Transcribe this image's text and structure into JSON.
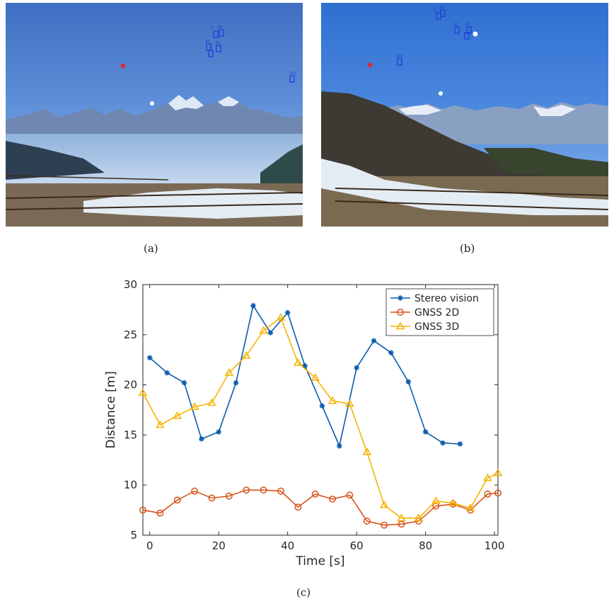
{
  "captions": {
    "a": "(a)",
    "b": "(b)",
    "c": "(c)"
  },
  "photo_a_labels": [
    "0",
    "80",
    "20",
    "60",
    "100"
  ],
  "photo_b_labels": [
    "0",
    "80",
    "20",
    "60",
    "100"
  ],
  "colors": {
    "stereo": "#0a5cad",
    "gnss2d": "#d95319",
    "gnss3d": "#f5b400",
    "box": "#1f3fd6"
  },
  "chart_data": {
    "type": "line",
    "xlabel": "Time [s]",
    "ylabel": "Distance [m]",
    "xlim": [
      -2,
      101
    ],
    "ylim": [
      5,
      30
    ],
    "xticks": [
      0,
      20,
      40,
      60,
      80,
      100
    ],
    "yticks": [
      5,
      10,
      15,
      20,
      25,
      30
    ],
    "grid": false,
    "legend": "top-right",
    "series": [
      {
        "name": "Stereo vision",
        "marker": "star",
        "x": [
          0,
          5,
          10,
          15,
          20,
          25,
          30,
          35,
          40,
          45,
          50,
          55,
          60,
          65,
          70,
          75,
          80,
          85,
          90
        ],
        "y": [
          22.7,
          21.2,
          20.2,
          14.6,
          15.3,
          20.2,
          27.9,
          25.2,
          27.2,
          21.9,
          17.9,
          13.9,
          21.7,
          24.4,
          23.2,
          20.3,
          15.3,
          14.2,
          14.1
        ]
      },
      {
        "name": "GNSS 2D",
        "marker": "circle",
        "x": [
          -2,
          3,
          8,
          13,
          18,
          23,
          28,
          33,
          38,
          43,
          48,
          53,
          58,
          63,
          68,
          73,
          78,
          83,
          88,
          93,
          98,
          101
        ],
        "y": [
          7.5,
          7.2,
          8.5,
          9.4,
          8.7,
          8.9,
          9.5,
          9.5,
          9.4,
          7.8,
          9.1,
          8.6,
          9.0,
          6.4,
          6.0,
          6.1,
          6.4,
          7.9,
          8.1,
          7.5,
          9.1,
          9.2
        ]
      },
      {
        "name": "GNSS 3D",
        "marker": "triangle",
        "x": [
          -2,
          3,
          8,
          13,
          18,
          23,
          28,
          33,
          38,
          43,
          48,
          53,
          58,
          63,
          68,
          73,
          78,
          83,
          88,
          93,
          98,
          101
        ],
        "y": [
          19.2,
          16.0,
          16.9,
          17.8,
          18.2,
          21.2,
          22.9,
          25.4,
          26.7,
          22.2,
          20.7,
          18.4,
          18.1,
          13.3,
          8.0,
          6.7,
          6.7,
          8.4,
          8.2,
          7.7,
          10.7,
          11.2
        ]
      }
    ]
  }
}
